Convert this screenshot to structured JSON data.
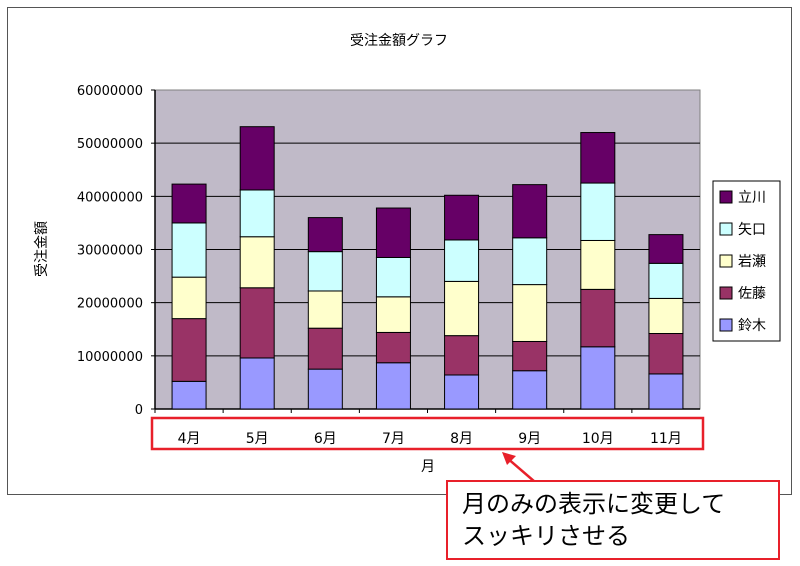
{
  "chart_data": {
    "type": "bar",
    "stacked": true,
    "title": "受注金額グラフ",
    "xlabel": "月",
    "ylabel": "受注金額",
    "ylim": [
      0,
      60000000
    ],
    "yticks": [
      "0",
      "10000000",
      "20000000",
      "30000000",
      "40000000",
      "50000000",
      "60000000"
    ],
    "categories": [
      "4月",
      "5月",
      "6月",
      "7月",
      "8月",
      "9月",
      "10月",
      "11月"
    ],
    "series": [
      {
        "name": "鈴木",
        "color": "#9999ff",
        "values": [
          5200000,
          9600000,
          7500000,
          8700000,
          6400000,
          7200000,
          11700000,
          6600000
        ]
      },
      {
        "name": "佐藤",
        "color": "#993366",
        "values": [
          11800000,
          13200000,
          7700000,
          5700000,
          7400000,
          5500000,
          10800000,
          7600000
        ]
      },
      {
        "name": "岩瀬",
        "color": "#ffffcc",
        "values": [
          7800000,
          9600000,
          7000000,
          6700000,
          10200000,
          10700000,
          9200000,
          6600000
        ]
      },
      {
        "name": "矢口",
        "color": "#ccffff",
        "values": [
          10200000,
          8800000,
          7400000,
          7400000,
          7800000,
          8800000,
          10800000,
          6600000
        ]
      },
      {
        "name": "立川",
        "color": "#660066",
        "values": [
          7300000,
          11900000,
          6400000,
          9300000,
          8400000,
          10000000,
          9500000,
          5400000
        ]
      }
    ],
    "grid": true,
    "legend": "right",
    "plot_background": "#c0bac8",
    "highlight_color": "#e8202a"
  },
  "callout": {
    "line1": "月のみの表示に変更して",
    "line2": "スッキリさせる"
  }
}
